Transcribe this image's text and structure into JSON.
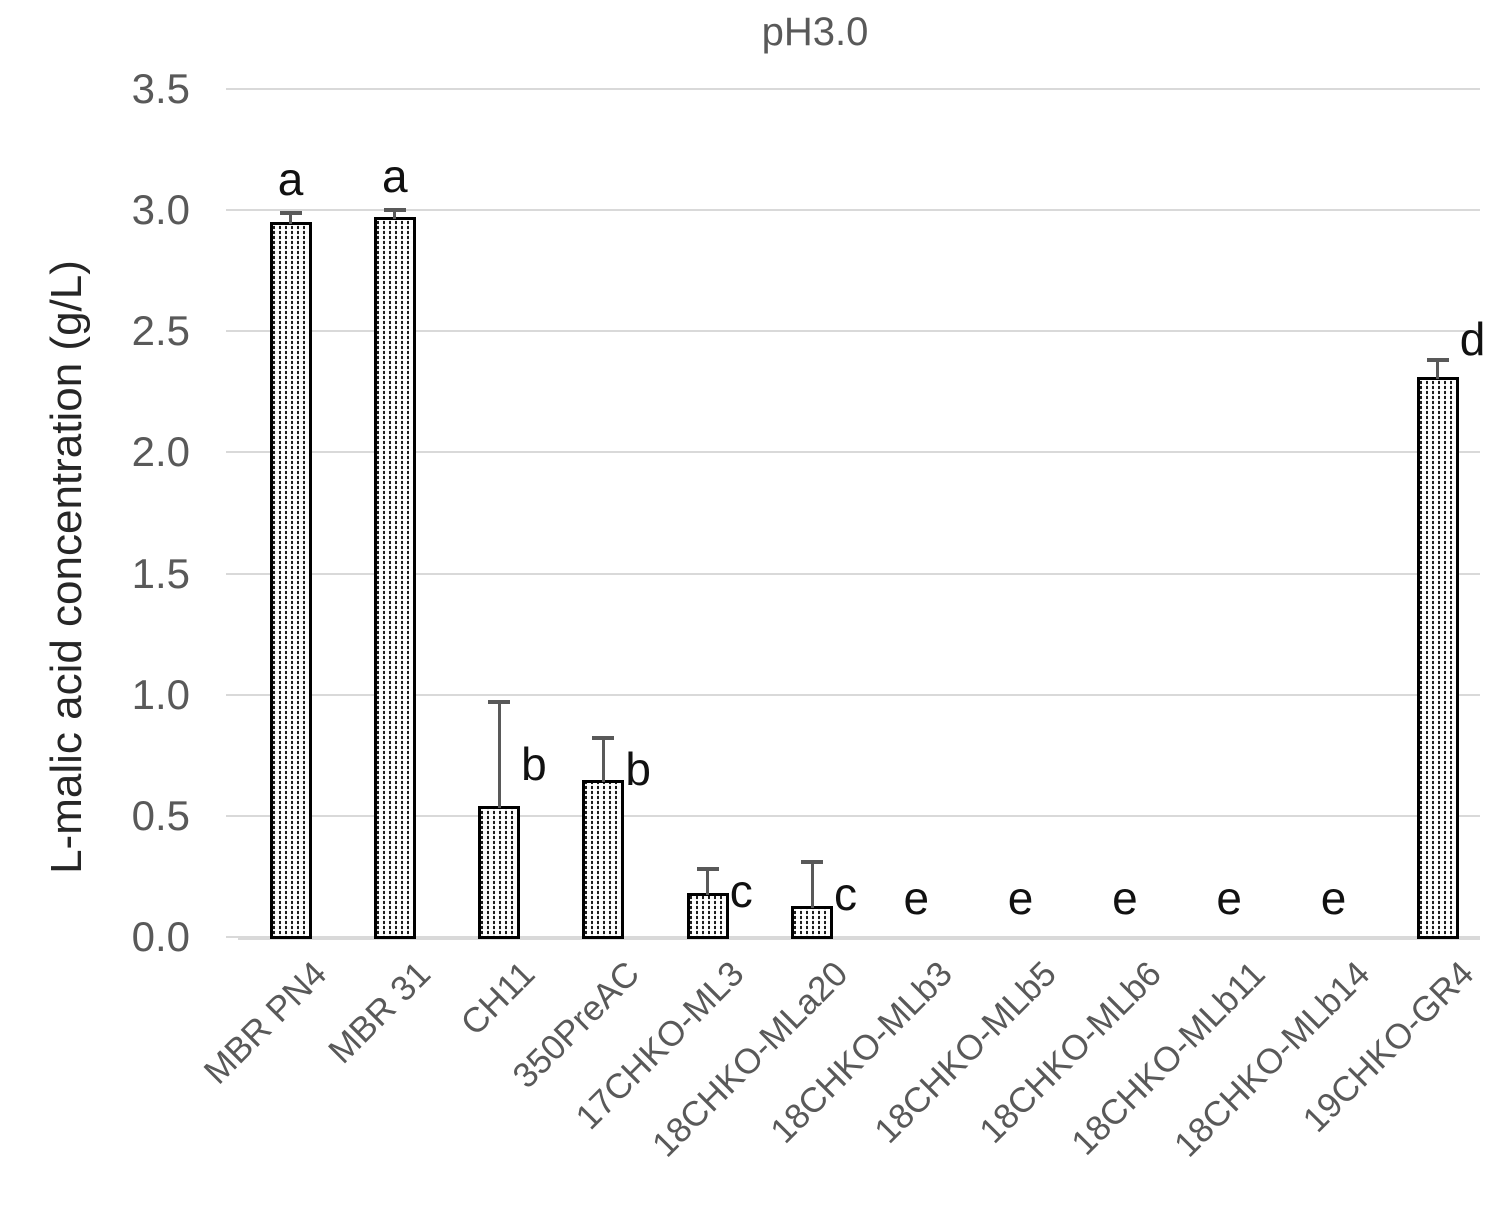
{
  "chart_data": {
    "type": "bar",
    "title": "pH3.0",
    "xlabel": "",
    "ylabel": "L-malic acid concentration (g/L)",
    "ylim": [
      0,
      3.5
    ],
    "ytick_step": 0.5,
    "ytick_labels": [
      "0.0",
      "0.5",
      "1.0",
      "1.5",
      "2.0",
      "2.5",
      "3.0",
      "3.5"
    ],
    "grid": true,
    "legend": "none",
    "bar_style": "black-dotted-pattern-fill",
    "categories": [
      "MBR PN4",
      "MBR 31",
      "CH11",
      "350PreAC",
      "17CHKO-ML3",
      "18CHKO-MLa20",
      "18CHKO-MLb3",
      "18CHKO-MLb5",
      "18CHKO-MLb6",
      "18CHKO-MLb11",
      "18CHKO-MLb14",
      "19CHKO-GR4"
    ],
    "values": [
      2.95,
      2.97,
      0.54,
      0.65,
      0.18,
      0.13,
      0,
      0,
      0,
      0,
      0,
      2.31
    ],
    "errors_plus": [
      0.04,
      0.03,
      0.43,
      0.17,
      0.1,
      0.18,
      0,
      0,
      0,
      0,
      0,
      0.07
    ],
    "significance_letters": [
      {
        "char": "a",
        "mode": "above",
        "dy": 0
      },
      {
        "char": "a",
        "mode": "above",
        "dy": 0
      },
      {
        "char": "b",
        "mode": "right",
        "dy": 10
      },
      {
        "char": "b",
        "mode": "right",
        "dy": 10
      },
      {
        "char": "c",
        "mode": "right",
        "dy": 10
      },
      {
        "char": "c",
        "mode": "right",
        "dy": 10
      },
      {
        "char": "e",
        "mode": "axis",
        "dy": 0
      },
      {
        "char": "e",
        "mode": "axis",
        "dy": 0
      },
      {
        "char": "e",
        "mode": "axis",
        "dy": 0
      },
      {
        "char": "e",
        "mode": "axis",
        "dy": 0
      },
      {
        "char": "e",
        "mode": "axis",
        "dy": 0
      },
      {
        "char": "d",
        "mode": "right",
        "dy": -30
      }
    ],
    "colors": {
      "grid": "#d9d9d9",
      "axis_line": "#d9d9d9",
      "tick_labels": "#595959",
      "title": "#595959",
      "bar_border": "#000000",
      "bar_pattern": "#1c1c1c",
      "error_bar": "#595959",
      "sig_letters": "#111111",
      "y_axis_label": "#262626"
    }
  }
}
